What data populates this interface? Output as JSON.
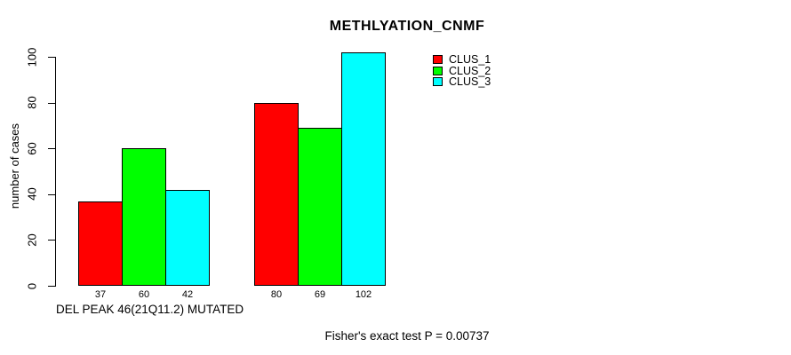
{
  "chart_data": {
    "type": "bar",
    "title": "METHLYATION_CNMF",
    "ylabel": "number of cases",
    "xlabel": "DEL PEAK 46(21Q11.2) MUTATED",
    "annotation": "Fisher's exact test P = 0.00737",
    "ylim": [
      0,
      100
    ],
    "yticks": [
      0,
      20,
      40,
      60,
      80,
      100
    ],
    "grid": false,
    "legend_position": "top-right",
    "group_count": 2,
    "series": [
      {
        "name": "CLUS_1",
        "color": "#ff0000",
        "values": [
          37,
          80
        ]
      },
      {
        "name": "CLUS_2",
        "color": "#00ff00",
        "values": [
          60,
          69
        ]
      },
      {
        "name": "CLUS_3",
        "color": "#00ffff",
        "values": [
          42,
          102
        ]
      }
    ],
    "bar_value_labels": [
      [
        37,
        60,
        42
      ],
      [
        80,
        69,
        102
      ]
    ],
    "colors": {
      "background": "#ffffff",
      "axis": "#000000",
      "text": "#000000"
    }
  }
}
